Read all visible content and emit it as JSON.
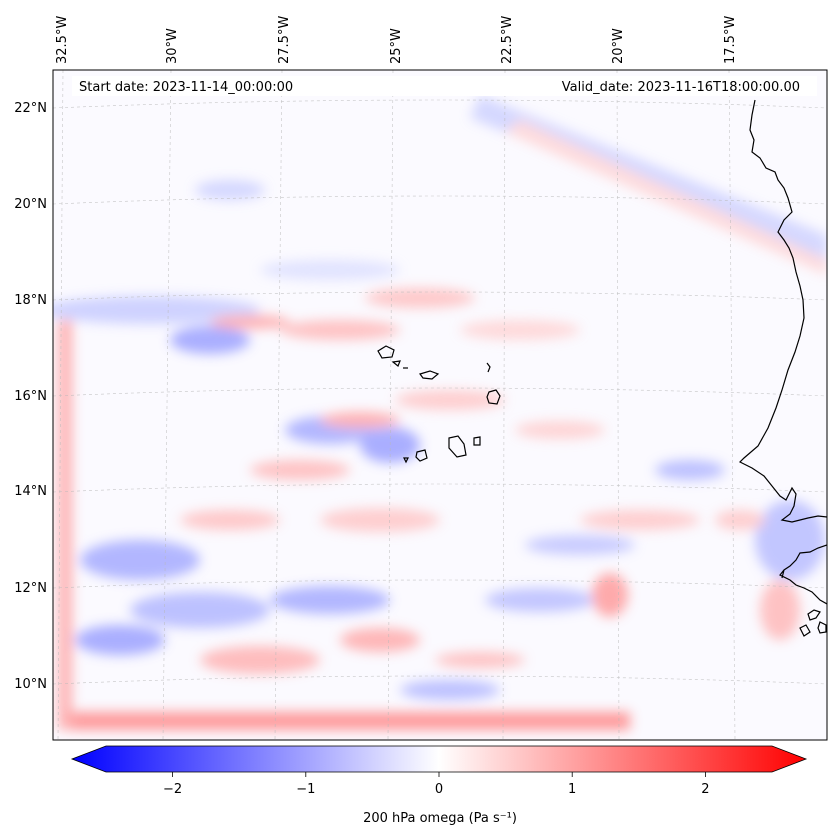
{
  "map": {
    "start_date": "Start date: 2023-11-14_00:00:00",
    "valid_date": "Valid_date: 2023-11-16T18:00:00.00",
    "lon_labels": [
      "32.5°W",
      "30°W",
      "27.5°W",
      "25°W",
      "22.5°W",
      "20°W",
      "17.5°W"
    ],
    "lat_labels": [
      "22°N",
      "20°N",
      "18°N",
      "16°N",
      "14°N",
      "12°N",
      "10°N"
    ]
  },
  "colorbar": {
    "label": "200 hPa omega (Pa s⁻¹)",
    "ticks": [
      "−2",
      "−1",
      "0",
      "1",
      "2"
    ],
    "tick_values": [
      -2,
      -1,
      0,
      1,
      2
    ],
    "range": [
      -2.5,
      2.5
    ],
    "colormap": "bwr",
    "negative_color": "#0000ff",
    "zero_color": "#ffffff",
    "positive_color": "#ff0000"
  }
}
